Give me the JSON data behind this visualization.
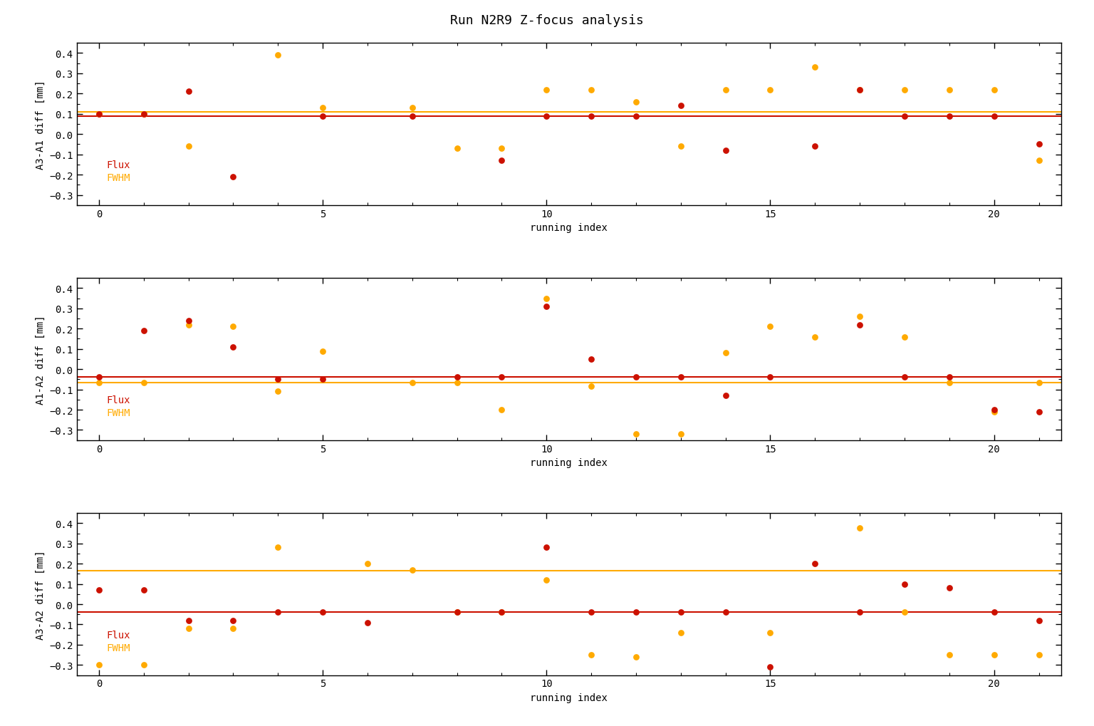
{
  "title": "Run N2R9 Z-focus analysis",
  "fig_facecolor": "#ffffff",
  "axes_facecolor": "#ffffff",
  "text_color": "#000000",
  "spine_color": "#000000",
  "panels": [
    {
      "ylabel": "A3-A1 diff [mm]",
      "flux_line": 0.09,
      "fwhm_line": 0.11,
      "flux_color": "#cc1100",
      "fwhm_color": "#ffaa00",
      "red_x": [
        0,
        1,
        2,
        3,
        5,
        7,
        9,
        10,
        11,
        12,
        13,
        14,
        16,
        17,
        18,
        19,
        20,
        21
      ],
      "red_y": [
        0.1,
        0.1,
        0.21,
        -0.21,
        0.09,
        0.09,
        -0.13,
        0.09,
        0.09,
        0.09,
        0.14,
        -0.08,
        -0.06,
        0.22,
        0.09,
        0.09,
        0.09,
        -0.05
      ],
      "orange_x": [
        0,
        1,
        2,
        4,
        5,
        7,
        8,
        9,
        10,
        11,
        12,
        13,
        14,
        15,
        16,
        17,
        18,
        19,
        20,
        21
      ],
      "orange_y": [
        0.1,
        0.1,
        -0.06,
        0.39,
        0.13,
        0.13,
        -0.07,
        -0.07,
        0.22,
        0.22,
        0.16,
        -0.06,
        0.22,
        0.22,
        0.33,
        0.22,
        0.22,
        0.22,
        0.22,
        -0.13
      ]
    },
    {
      "ylabel": "A1-A2 diff [mm]",
      "flux_line": -0.04,
      "fwhm_line": -0.065,
      "flux_color": "#cc1100",
      "fwhm_color": "#ffaa00",
      "red_x": [
        0,
        1,
        2,
        3,
        4,
        5,
        8,
        9,
        10,
        11,
        12,
        13,
        14,
        15,
        17,
        18,
        19,
        20,
        21
      ],
      "red_y": [
        -0.04,
        0.19,
        0.24,
        0.11,
        -0.05,
        -0.05,
        -0.04,
        -0.04,
        0.31,
        0.05,
        -0.04,
        -0.04,
        -0.13,
        -0.04,
        0.22,
        -0.04,
        -0.04,
        -0.2,
        -0.21
      ],
      "orange_x": [
        0,
        1,
        2,
        3,
        4,
        5,
        7,
        8,
        9,
        10,
        11,
        12,
        13,
        14,
        15,
        16,
        17,
        18,
        19,
        20,
        21
      ],
      "orange_y": [
        -0.065,
        -0.065,
        0.22,
        0.21,
        -0.11,
        0.09,
        -0.065,
        -0.065,
        -0.2,
        0.35,
        -0.085,
        -0.32,
        -0.32,
        0.08,
        0.21,
        0.16,
        0.26,
        0.16,
        -0.065,
        -0.21,
        -0.065
      ]
    },
    {
      "ylabel": "A3-A2 diff [mm]",
      "flux_line": -0.04,
      "fwhm_line": 0.165,
      "flux_color": "#cc1100",
      "fwhm_color": "#ffaa00",
      "red_x": [
        0,
        1,
        2,
        3,
        4,
        5,
        6,
        8,
        9,
        10,
        11,
        12,
        13,
        14,
        15,
        16,
        17,
        18,
        19,
        20,
        21
      ],
      "red_y": [
        0.07,
        0.07,
        -0.08,
        -0.08,
        -0.04,
        -0.04,
        -0.09,
        -0.04,
        -0.04,
        0.28,
        -0.04,
        -0.04,
        -0.04,
        -0.04,
        -0.31,
        0.2,
        -0.04,
        0.1,
        0.08,
        -0.04,
        -0.08
      ],
      "orange_x": [
        0,
        1,
        2,
        3,
        4,
        6,
        7,
        8,
        9,
        10,
        11,
        12,
        13,
        15,
        17,
        18,
        19,
        20,
        21
      ],
      "orange_y": [
        -0.3,
        -0.3,
        -0.12,
        -0.12,
        0.28,
        0.2,
        0.17,
        -0.04,
        -0.04,
        0.12,
        -0.25,
        -0.26,
        -0.14,
        -0.14,
        0.375,
        -0.04,
        -0.25,
        -0.25,
        -0.25
      ]
    }
  ],
  "xlabel": "running index",
  "ylim": [
    -0.35,
    0.45
  ],
  "yticks": [
    -0.3,
    -0.2,
    -0.1,
    0.0,
    0.1,
    0.2,
    0.3,
    0.4
  ],
  "xlim": [
    -0.5,
    21.5
  ],
  "xticks": [
    0,
    5,
    10,
    15,
    20
  ]
}
